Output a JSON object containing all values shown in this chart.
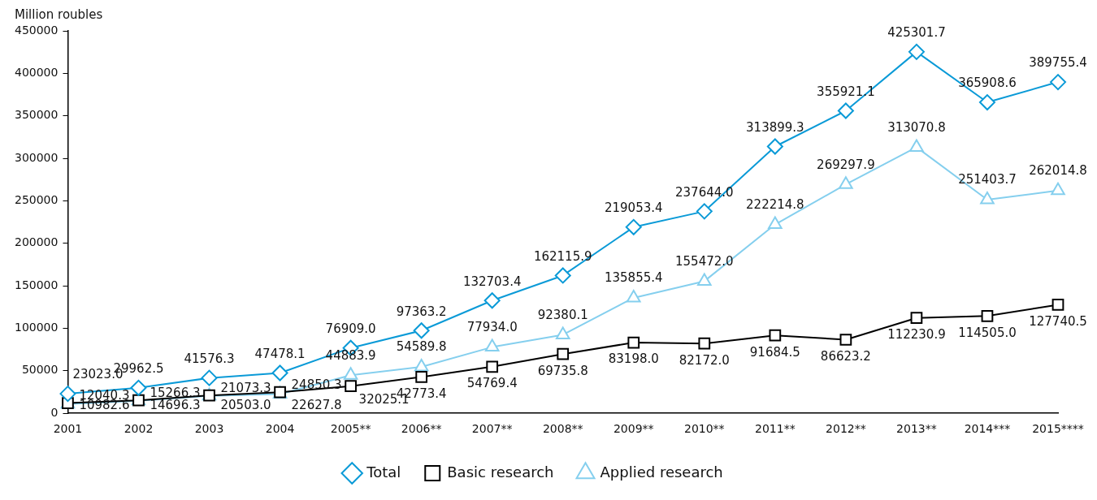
{
  "chart_data": {
    "type": "line",
    "ylabel": "Million roubles",
    "categories": [
      "2001",
      "2002",
      "2003",
      "2004",
      "2005**",
      "2006**",
      "2007**",
      "2008**",
      "2009**",
      "2010**",
      "2011**",
      "2012**",
      "2013**",
      "2014***",
      "2015****"
    ],
    "ylim": [
      0,
      450000
    ],
    "yticks": [
      0,
      50000,
      100000,
      150000,
      200000,
      250000,
      300000,
      350000,
      400000,
      450000
    ],
    "grid": false,
    "legend": "bottom",
    "line_style": "solid",
    "series": [
      {
        "name": "Total",
        "color": "#0a9ad7",
        "marker": "diamond",
        "values": [
          23023.0,
          29962.5,
          41576.3,
          47478.1,
          76909.0,
          97363.2,
          132703.4,
          162115.9,
          219053.4,
          237644.0,
          313899.3,
          355921.1,
          425301.7,
          365908.6,
          389755.4
        ],
        "value_labels": [
          "23023.0",
          "29962.5",
          "41576.3",
          "47478.1",
          "76909.0",
          "97363.2",
          "132703.4",
          "162115.9",
          "219053.4",
          "237644.0",
          "313899.3",
          "355921.1",
          "425301.7",
          "365908.6",
          "389755.4"
        ]
      },
      {
        "name": "Basic research",
        "color": "#000000",
        "marker": "square",
        "values": [
          12040.3,
          15266.3,
          21073.3,
          24850.3,
          32025.1,
          42773.4,
          54769.4,
          69735.8,
          83198.0,
          82172.0,
          91684.5,
          86623.2,
          112230.9,
          114505.0,
          127740.5
        ],
        "value_labels": [
          "12040.3",
          "15266.3",
          "21073.3",
          "24850.3",
          "32025.1",
          "42773.4",
          "54769.4",
          "69735.8",
          "83198.0",
          "82172.0",
          "91684.5",
          "86623.2",
          "112230.9",
          "114505.0",
          "127740.5"
        ]
      },
      {
        "name": "Applied research",
        "color": "#85cfee",
        "marker": "triangle",
        "values": [
          10982.6,
          14696.3,
          20503.0,
          22627.8,
          44883.9,
          54589.8,
          77934.0,
          92380.1,
          135855.4,
          155472.0,
          222214.8,
          269297.9,
          313070.8,
          251403.7,
          262014.8
        ],
        "value_labels": [
          "10982.6",
          "14696.3",
          "20503.0",
          "22627.8",
          "44883.9",
          "54589.8",
          "77934.0",
          "92380.1",
          "135855.4",
          "155472.0",
          "222214.8",
          "269297.9",
          "313070.8",
          "251403.7",
          "262014.8"
        ]
      }
    ]
  }
}
